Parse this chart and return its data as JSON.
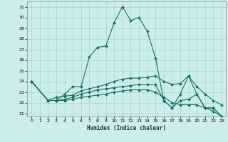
{
  "xlabel": "Humidex (Indice chaleur)",
  "background_color": "#cceee8",
  "grid_color": "#aad4ce",
  "line_color": "#1a6e60",
  "xlim": [
    -0.5,
    23.5
  ],
  "ylim": [
    20.7,
    31.5
  ],
  "xticks": [
    0,
    1,
    2,
    3,
    4,
    5,
    6,
    7,
    8,
    9,
    10,
    11,
    12,
    13,
    14,
    15,
    16,
    17,
    18,
    19,
    20,
    21,
    22,
    23
  ],
  "yticks": [
    21,
    22,
    23,
    24,
    25,
    26,
    27,
    28,
    29,
    30,
    31
  ],
  "series": [
    {
      "x": [
        0,
        2,
        3,
        4,
        5,
        6,
        7,
        8,
        9,
        10,
        11,
        12,
        13,
        14,
        15,
        16,
        17,
        18,
        19,
        20,
        21,
        22,
        23
      ],
      "y": [
        24,
        22.2,
        22.2,
        22.8,
        23.5,
        23.5,
        26.3,
        27.2,
        27.3,
        29.5,
        31,
        29.7,
        30.0,
        28.7,
        26.2,
        22.2,
        21.5,
        22.2,
        22.3,
        22.8,
        21.5,
        21.5,
        20.7
      ]
    },
    {
      "x": [
        0,
        2,
        3,
        4,
        5,
        6,
        7,
        8,
        9,
        10,
        11,
        12,
        13,
        14,
        15,
        16,
        17,
        18,
        19,
        20,
        21,
        22,
        23
      ],
      "y": [
        24,
        22.2,
        22.5,
        22.6,
        22.7,
        23.1,
        23.3,
        23.5,
        23.7,
        24.0,
        24.2,
        24.3,
        24.3,
        24.4,
        24.5,
        24.0,
        23.7,
        23.8,
        24.5,
        23.5,
        22.8,
        22.2,
        21.8
      ]
    },
    {
      "x": [
        0,
        2,
        3,
        4,
        5,
        6,
        7,
        8,
        9,
        10,
        11,
        12,
        13,
        14,
        15,
        16,
        17,
        18,
        19,
        20,
        21,
        22,
        23
      ],
      "y": [
        24,
        22.2,
        22.2,
        22.3,
        22.5,
        22.8,
        23.0,
        23.2,
        23.3,
        23.4,
        23.5,
        23.6,
        23.7,
        23.7,
        23.7,
        22.2,
        21.5,
        22.8,
        24.5,
        22.8,
        21.5,
        21.5,
        20.7
      ]
    },
    {
      "x": [
        0,
        2,
        3,
        4,
        5,
        6,
        7,
        8,
        9,
        10,
        11,
        12,
        13,
        14,
        15,
        16,
        17,
        18,
        19,
        20,
        21,
        22,
        23
      ],
      "y": [
        24,
        22.2,
        22.2,
        22.2,
        22.3,
        22.5,
        22.6,
        22.7,
        22.8,
        23.0,
        23.1,
        23.2,
        23.2,
        23.2,
        23.0,
        22.5,
        22.0,
        21.8,
        21.8,
        21.8,
        21.5,
        21.2,
        20.7
      ]
    }
  ]
}
